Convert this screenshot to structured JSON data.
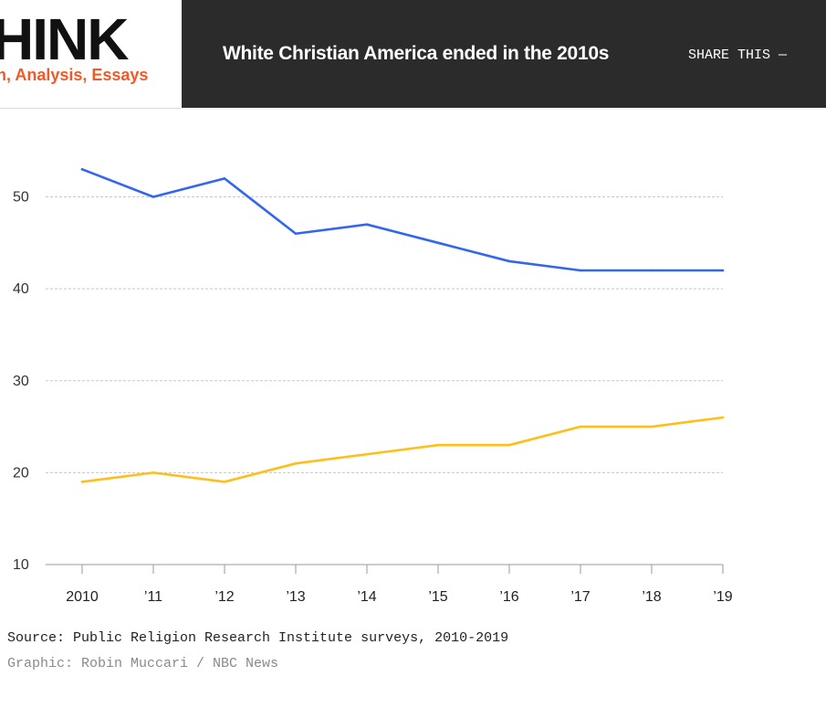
{
  "header": {
    "brand": "HINK",
    "tagline": "n, Analysis, Essays",
    "headline": "White Christian America ended in the 2010s",
    "share_label": "SHARE THIS —"
  },
  "colors": {
    "series_blue": "#3366ee",
    "series_yellow": "#ffbf1a",
    "brand_orange": "#f05a28",
    "header_dark": "#2b2b2b",
    "grid": "#c8c8c8"
  },
  "chart_data": {
    "type": "line",
    "title": "",
    "xlabel": "",
    "ylabel": "",
    "x": [
      "2010",
      "’11",
      "’12",
      "’13",
      "’14",
      "’15",
      "’16",
      "’17",
      "’18",
      "’19"
    ],
    "yticks": [
      10,
      20,
      30,
      40,
      50
    ],
    "ylim": [
      10,
      55
    ],
    "grid": "horizontal dashed",
    "legend": "none",
    "series": [
      {
        "color": "#3366ee",
        "values": [
          53,
          50,
          52,
          46,
          47,
          45,
          43,
          42,
          42,
          42
        ]
      },
      {
        "color": "#ffbf1a",
        "values": [
          19,
          20,
          19,
          21,
          22,
          23,
          23,
          25,
          25,
          26
        ]
      }
    ]
  },
  "footer": {
    "source": "Source: Public Religion Research Institute surveys, 2010-2019",
    "credit": "Graphic: Robin Muccari / NBC News"
  }
}
